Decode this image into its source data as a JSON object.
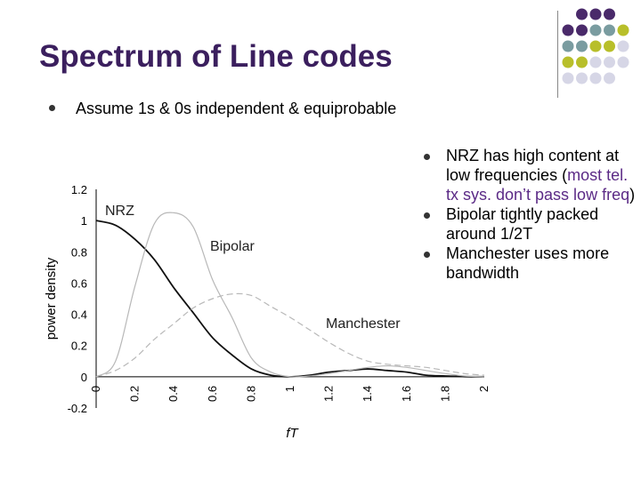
{
  "slide": {
    "title": "Spectrum of Line codes",
    "bullet": "Assume 1s & 0s independent & equiprobable",
    "points": {
      "nrz_part1": "NRZ has high content at low frequencies (",
      "nrz_accent": "most tel. tx sys. don’t pass low freq",
      "nrz_part2": ")",
      "bipolar": "Bipolar tightly packed around 1/2T",
      "manchester": "Manchester uses more bandwidth"
    },
    "colors": {
      "title": "#3b1f5e",
      "accent": "#5b2a86",
      "dot_purple": "#4a2a6a",
      "dot_teal": "#7a9ca0",
      "dot_olive": "#b8bf2a",
      "dot_lilac": "#d6d6e6"
    }
  },
  "chart_data": {
    "type": "line",
    "xlabel": "fT",
    "ylabel": "power density",
    "xlim": [
      0,
      2
    ],
    "ylim": [
      -0.2,
      1.2
    ],
    "x_ticks": [
      "0",
      "0.2",
      "0.4",
      "0.6",
      "0.8",
      "1",
      "1.2",
      "1.4",
      "1.6",
      "1.8",
      "2"
    ],
    "y_ticks": [
      "1.2",
      "1",
      "0.8",
      "0.6",
      "0.4",
      "0.2",
      "0",
      "-0.2"
    ],
    "series": [
      {
        "name": "NRZ",
        "x": [
          0,
          0.1,
          0.2,
          0.3,
          0.4,
          0.5,
          0.6,
          0.7,
          0.8,
          0.9,
          1.0,
          1.1,
          1.2,
          1.3,
          1.4,
          1.5,
          1.6,
          1.7,
          1.8,
          1.9,
          2.0
        ],
        "values": [
          1.0,
          0.97,
          0.88,
          0.75,
          0.57,
          0.41,
          0.25,
          0.14,
          0.05,
          0.01,
          0.0,
          0.01,
          0.03,
          0.04,
          0.05,
          0.04,
          0.03,
          0.01,
          0.005,
          0.001,
          0.0
        ]
      },
      {
        "name": "Bipolar",
        "x": [
          0,
          0.1,
          0.2,
          0.3,
          0.4,
          0.5,
          0.6,
          0.7,
          0.8,
          0.9,
          1.0,
          1.1,
          1.2,
          1.3,
          1.4,
          1.5,
          1.6,
          1.7,
          1.8,
          1.9,
          2.0
        ],
        "values": [
          0.0,
          0.1,
          0.58,
          0.98,
          1.05,
          0.96,
          0.62,
          0.38,
          0.12,
          0.03,
          0.0,
          0.005,
          0.02,
          0.04,
          0.06,
          0.07,
          0.06,
          0.04,
          0.02,
          0.005,
          0.0
        ]
      },
      {
        "name": "Manchester",
        "x": [
          0,
          0.1,
          0.2,
          0.3,
          0.4,
          0.5,
          0.6,
          0.7,
          0.8,
          0.9,
          1.0,
          1.1,
          1.2,
          1.3,
          1.4,
          1.5,
          1.6,
          1.7,
          1.8,
          1.9,
          2.0
        ],
        "values": [
          0.0,
          0.04,
          0.12,
          0.24,
          0.34,
          0.44,
          0.5,
          0.53,
          0.52,
          0.45,
          0.38,
          0.3,
          0.22,
          0.15,
          0.1,
          0.08,
          0.07,
          0.06,
          0.04,
          0.02,
          0.01
        ]
      }
    ]
  }
}
